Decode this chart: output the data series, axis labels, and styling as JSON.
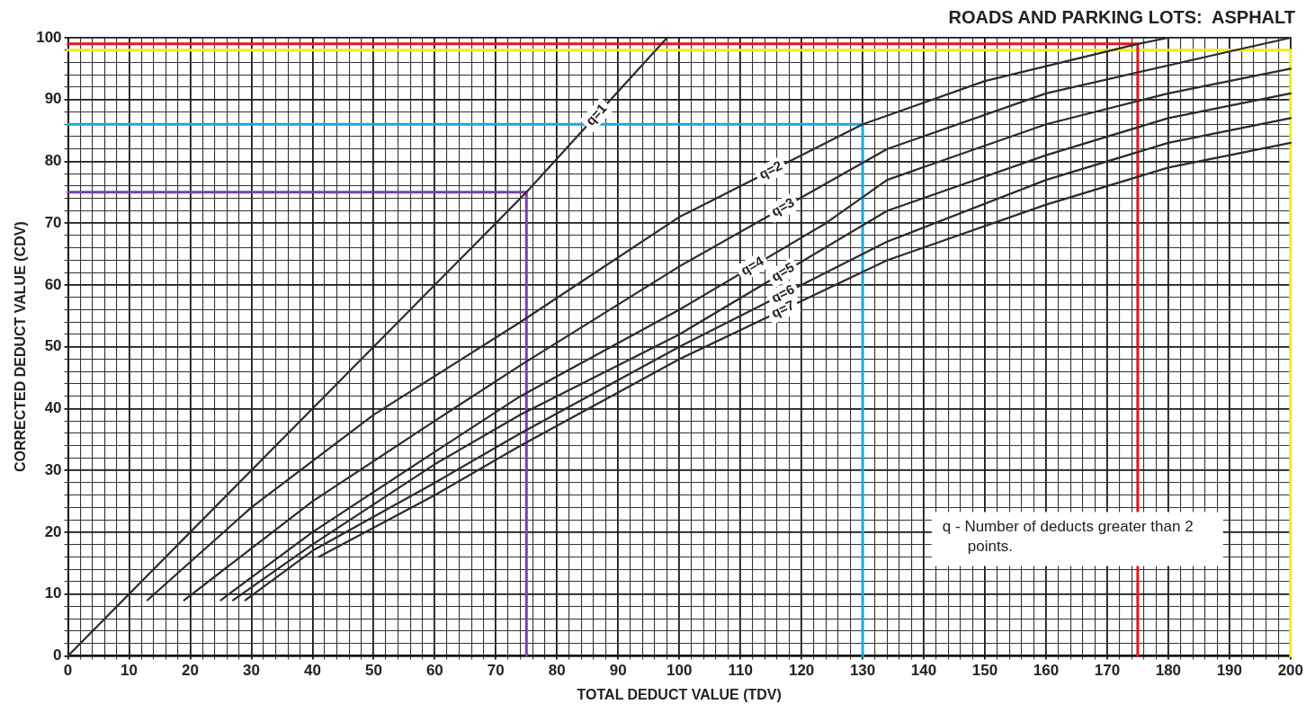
{
  "chart_data": {
    "type": "line",
    "title": "ROADS AND PARKING LOTS:  ASPHALT",
    "xlabel": "TOTAL DEDUCT VALUE (TDV)",
    "ylabel": "CORRECTED DEDUCT VALUE (CDV)",
    "annotations": [
      "q - Number of deducts greater than 2 points."
    ],
    "xlim": [
      0,
      200
    ],
    "ylim": [
      0,
      100
    ],
    "xticks": [
      0,
      {
        "value": 2,
        "label": null
      },
      {
        "value": 4,
        "label": null
      },
      {
        "value": 6,
        "label": null
      },
      {
        "value": 8,
        "label": null
      },
      10,
      {
        "value": 12,
        "label": null
      },
      {
        "value": 14,
        "label": null
      },
      {
        "value": 16,
        "label": null
      },
      {
        "value": 18,
        "label": null
      },
      20,
      {
        "value": 22,
        "label": null
      },
      {
        "value": 24,
        "label": null
      },
      {
        "value": 26,
        "label": null
      },
      {
        "value": 28,
        "label": null
      },
      30,
      {
        "value": 32,
        "label": null
      },
      {
        "value": 34,
        "label": null
      },
      {
        "value": 36,
        "label": null
      },
      {
        "value": 38,
        "label": null
      },
      40,
      {
        "value": 42,
        "label": null
      },
      {
        "value": 44,
        "label": null
      },
      {
        "value": 46,
        "label": null
      },
      {
        "value": 48,
        "label": null
      },
      50,
      {
        "value": 52,
        "label": null
      },
      {
        "value": 54,
        "label": null
      },
      {
        "value": 56,
        "label": null
      },
      {
        "value": 58,
        "label": null
      },
      60,
      {
        "value": 62,
        "label": null
      },
      {
        "value": 64,
        "label": null
      },
      {
        "value": 66,
        "label": null
      },
      {
        "value": 68,
        "label": null
      },
      70,
      {
        "value": 72,
        "label": null
      },
      {
        "value": 74,
        "label": null
      },
      {
        "value": 76,
        "label": null
      },
      {
        "value": 78,
        "label": null
      },
      80,
      {
        "value": 82,
        "label": null
      },
      {
        "value": 84,
        "label": null
      },
      {
        "value": 86,
        "label": null
      },
      {
        "value": 88,
        "label": null
      },
      90,
      {
        "value": 92,
        "label": null
      },
      {
        "value": 94,
        "label": null
      },
      {
        "value": 96,
        "label": null
      },
      {
        "value": 98,
        "label": null
      },
      100,
      {
        "value": 102,
        "label": null
      },
      {
        "value": 104,
        "label": null
      },
      {
        "value": 106,
        "label": null
      },
      {
        "value": 108,
        "label": null
      },
      110,
      {
        "value": 112,
        "label": null
      },
      {
        "value": 114,
        "label": null
      },
      {
        "value": 116,
        "label": null
      },
      {
        "value": 118,
        "label": null
      },
      120,
      {
        "value": 122,
        "label": null
      },
      {
        "value": 124,
        "label": null
      },
      {
        "value": 126,
        "label": null
      },
      {
        "value": 128,
        "label": null
      },
      130,
      {
        "value": 132,
        "label": null
      },
      {
        "value": 134,
        "label": null
      },
      {
        "value": 136,
        "label": null
      },
      {
        "value": 138,
        "label": null
      },
      140,
      {
        "value": 142,
        "label": null
      },
      {
        "value": 144,
        "label": null
      },
      {
        "value": 146,
        "label": null
      },
      {
        "value": 148,
        "label": null
      },
      150,
      {
        "value": 152,
        "label": null
      },
      {
        "value": 154,
        "label": null
      },
      {
        "value": 156,
        "label": null
      },
      {
        "value": 158,
        "label": null
      },
      160,
      {
        "value": 162,
        "label": null
      },
      {
        "value": 164,
        "label": null
      },
      {
        "value": 166,
        "label": null
      },
      {
        "value": 168,
        "label": null
      },
      170,
      {
        "value": 172,
        "label": null
      },
      {
        "value": 174,
        "label": null
      },
      {
        "value": 176,
        "label": null
      },
      {
        "value": 178,
        "label": null
      },
      180,
      {
        "value": 182,
        "label": null
      },
      {
        "value": 184,
        "label": null
      },
      {
        "value": 186,
        "label": null
      },
      {
        "value": 188,
        "label": null
      },
      190,
      {
        "value": 192,
        "label": null
      },
      {
        "value": 194,
        "label": null
      },
      {
        "value": 196,
        "label": null
      },
      {
        "value": 198,
        "label": null
      },
      200
    ],
    "yticks": [
      0,
      {
        "value": 2,
        "label": null
      },
      {
        "value": 4,
        "label": null
      },
      {
        "value": 6,
        "label": null
      },
      {
        "value": 8,
        "label": null
      },
      10,
      {
        "value": 12,
        "label": null
      },
      {
        "value": 14,
        "label": null
      },
      {
        "value": 16,
        "label": null
      },
      {
        "value": 18,
        "label": null
      },
      20,
      {
        "value": 22,
        "label": null
      },
      {
        "value": 24,
        "label": null
      },
      {
        "value": 26,
        "label": null
      },
      {
        "value": 28,
        "label": null
      },
      30,
      {
        "value": 32,
        "label": null
      },
      {
        "value": 34,
        "label": null
      },
      {
        "value": 36,
        "label": null
      },
      {
        "value": 38,
        "label": null
      },
      40,
      {
        "value": 42,
        "label": null
      },
      {
        "value": 44,
        "label": null
      },
      {
        "value": 46,
        "label": null
      },
      {
        "value": 48,
        "label": null
      },
      50,
      {
        "value": 52,
        "label": null
      },
      {
        "value": 54,
        "label": null
      },
      {
        "value": 56,
        "label": null
      },
      {
        "value": 58,
        "label": null
      },
      60,
      {
        "value": 62,
        "label": null
      },
      {
        "value": 64,
        "label": null
      },
      {
        "value": 66,
        "label": null
      },
      {
        "value": 68,
        "label": null
      },
      70,
      {
        "value": 72,
        "label": null
      },
      {
        "value": 74,
        "label": null
      },
      {
        "value": 76,
        "label": null
      },
      {
        "value": 78,
        "label": null
      },
      80,
      {
        "value": 82,
        "label": null
      },
      {
        "value": 84,
        "label": null
      },
      {
        "value": 86,
        "label": null
      },
      {
        "value": 88,
        "label": null
      },
      90,
      {
        "value": 92,
        "label": null
      },
      {
        "value": 94,
        "label": null
      },
      {
        "value": 96,
        "label": null
      },
      {
        "value": 98,
        "label": null
      },
      100
    ],
    "grid": true,
    "marker": "none",
    "line_style": "solid",
    "series": [
      {
        "name": "q=1",
        "color": "#2b2b2b",
        "x": [
          0,
          75,
          98
        ],
        "values": [
          0,
          75,
          100
        ]
      },
      {
        "name": "q=2",
        "color": "#2b2b2b",
        "x": [
          13,
          30,
          50,
          74,
          100,
          130,
          150,
          175,
          180
        ],
        "values": [
          9,
          24,
          39,
          54,
          71,
          86,
          93,
          99,
          100
        ]
      },
      {
        "name": "q=3",
        "color": "#2b2b2b",
        "x": [
          19,
          40,
          60,
          74,
          100,
          134,
          160,
          191,
          200
        ],
        "values": [
          9,
          25,
          38,
          47,
          63,
          82,
          91,
          98,
          100
        ]
      },
      {
        "name": "q=4",
        "color": "#2b2b2b",
        "x": [
          25,
          40,
          60,
          74,
          100,
          124,
          134,
          160,
          180,
          200
        ],
        "values": [
          9,
          20,
          33,
          42,
          56,
          70,
          77,
          86,
          91,
          95
        ]
      },
      {
        "name": "q=5",
        "color": "#2b2b2b",
        "x": [
          27,
          40,
          60,
          74,
          100,
          134,
          160,
          180,
          200
        ],
        "values": [
          9,
          18,
          31,
          39,
          52,
          72,
          81,
          87,
          91
        ]
      },
      {
        "name": "q=6",
        "color": "#2b2b2b",
        "x": [
          29,
          40,
          60,
          74,
          100,
          134,
          160,
          180,
          200
        ],
        "values": [
          9,
          17,
          28,
          36,
          50,
          67,
          77,
          83,
          87
        ]
      },
      {
        "name": "q=7",
        "color": "#2b2b2b",
        "x": [
          41,
          60,
          74,
          100,
          134,
          160,
          180,
          200
        ],
        "values": [
          16,
          26,
          34,
          48,
          64,
          73,
          79,
          83
        ]
      },
      {
        "color": "#7b3fb0",
        "x": [
          0,
          75,
          75
        ],
        "values": [
          75,
          75,
          0
        ]
      },
      {
        "color": "#1ea7e1",
        "x": [
          0,
          130,
          130
        ],
        "values": [
          86,
          86,
          0
        ]
      },
      {
        "color": "#e8141c",
        "x": [
          0,
          175,
          175
        ],
        "values": [
          99,
          99,
          0
        ]
      },
      {
        "color": "#f2ec1a",
        "x": [
          0,
          200,
          200
        ],
        "values": [
          98,
          98,
          0
        ]
      }
    ]
  }
}
